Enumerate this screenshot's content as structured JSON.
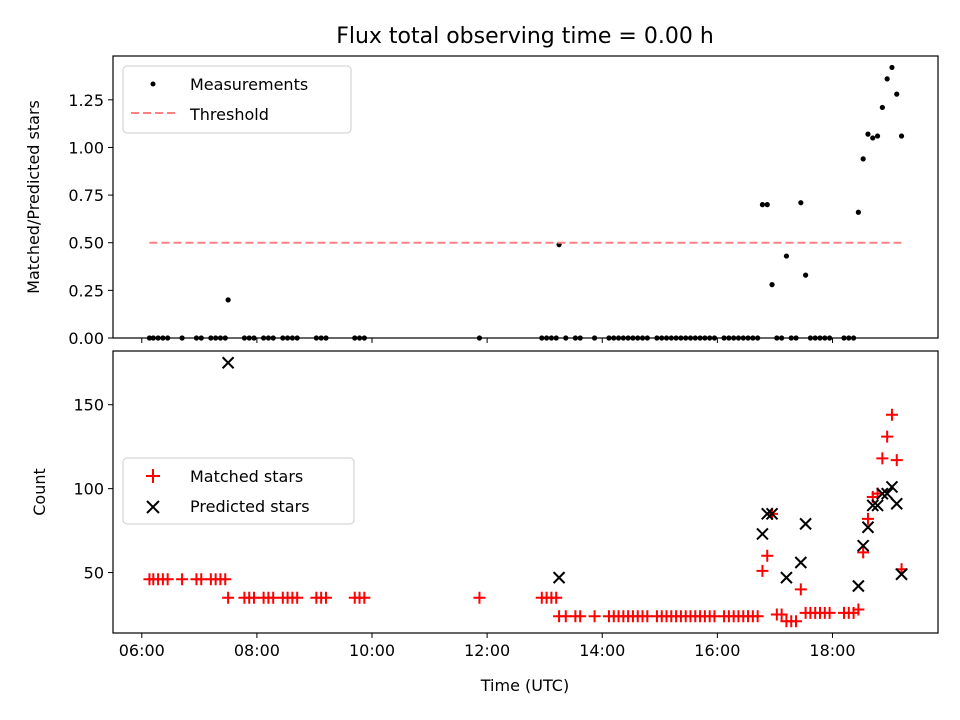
{
  "chart_data": [
    {
      "type": "scatter",
      "title": "Flux total observing time = 0.00 h",
      "ylabel": "Matched/Predicted stars",
      "xlabel": "",
      "xlim": [
        "05:30",
        "19:50"
      ],
      "ylim": [
        0,
        1.48
      ],
      "yticks": [
        "0.00",
        "0.25",
        "0.50",
        "0.75",
        "1.00",
        "1.25"
      ],
      "grid": false,
      "legend": {
        "placement": "top-left",
        "entries": [
          "Measurements",
          "Threshold"
        ]
      },
      "series": [
        {
          "name": "Measurements",
          "color": "#000000",
          "marker": "dot",
          "points": [
            [
              "06:08",
              0
            ],
            [
              "06:12",
              0
            ],
            [
              "06:17",
              0
            ],
            [
              "06:22",
              0
            ],
            [
              "06:27",
              0
            ],
            [
              "06:42",
              0
            ],
            [
              "06:57",
              0
            ],
            [
              "07:02",
              0
            ],
            [
              "07:12",
              0
            ],
            [
              "07:17",
              0
            ],
            [
              "07:22",
              0
            ],
            [
              "07:27",
              0
            ],
            [
              "07:30",
              0.2
            ],
            [
              "07:47",
              0
            ],
            [
              "07:52",
              0
            ],
            [
              "07:57",
              0
            ],
            [
              "08:07",
              0
            ],
            [
              "08:12",
              0
            ],
            [
              "08:17",
              0
            ],
            [
              "08:27",
              0
            ],
            [
              "08:32",
              0
            ],
            [
              "08:37",
              0
            ],
            [
              "08:42",
              0
            ],
            [
              "09:02",
              0
            ],
            [
              "09:07",
              0
            ],
            [
              "09:12",
              0
            ],
            [
              "09:42",
              0
            ],
            [
              "09:47",
              0
            ],
            [
              "09:52",
              0
            ],
            [
              "11:52",
              0
            ],
            [
              "12:57",
              0
            ],
            [
              "13:02",
              0
            ],
            [
              "13:07",
              0
            ],
            [
              "13:12",
              0
            ],
            [
              "13:15",
              0.49
            ],
            [
              "13:22",
              0
            ],
            [
              "13:32",
              0
            ],
            [
              "13:37",
              0
            ],
            [
              "13:52",
              0
            ],
            [
              "14:07",
              0
            ],
            [
              "14:12",
              0
            ],
            [
              "14:17",
              0
            ],
            [
              "14:22",
              0
            ],
            [
              "14:27",
              0
            ],
            [
              "14:32",
              0
            ],
            [
              "14:37",
              0
            ],
            [
              "14:42",
              0
            ],
            [
              "14:47",
              0
            ],
            [
              "14:57",
              0
            ],
            [
              "15:02",
              0
            ],
            [
              "15:07",
              0
            ],
            [
              "15:12",
              0
            ],
            [
              "15:17",
              0
            ],
            [
              "15:22",
              0
            ],
            [
              "15:27",
              0
            ],
            [
              "15:32",
              0
            ],
            [
              "15:37",
              0
            ],
            [
              "15:42",
              0
            ],
            [
              "15:47",
              0
            ],
            [
              "15:52",
              0
            ],
            [
              "15:57",
              0
            ],
            [
              "16:07",
              0
            ],
            [
              "16:12",
              0
            ],
            [
              "16:17",
              0
            ],
            [
              "16:22",
              0
            ],
            [
              "16:27",
              0
            ],
            [
              "16:32",
              0
            ],
            [
              "16:37",
              0
            ],
            [
              "16:42",
              0
            ],
            [
              "16:47",
              0.7
            ],
            [
              "16:52",
              0.7
            ],
            [
              "16:57",
              0.28
            ],
            [
              "17:02",
              0
            ],
            [
              "17:07",
              0
            ],
            [
              "17:12",
              0.43
            ],
            [
              "17:17",
              0
            ],
            [
              "17:22",
              0
            ],
            [
              "17:27",
              0.71
            ],
            [
              "17:32",
              0.33
            ],
            [
              "17:37",
              0
            ],
            [
              "17:42",
              0
            ],
            [
              "17:47",
              0
            ],
            [
              "17:52",
              0
            ],
            [
              "17:57",
              0
            ],
            [
              "18:12",
              0
            ],
            [
              "18:17",
              0
            ],
            [
              "18:22",
              0
            ],
            [
              "18:27",
              0.66
            ],
            [
              "18:32",
              0.94
            ],
            [
              "18:37",
              1.07
            ],
            [
              "18:42",
              1.05
            ],
            [
              "18:47",
              1.06
            ],
            [
              "18:52",
              1.21
            ],
            [
              "18:57",
              1.36
            ],
            [
              "19:02",
              1.42
            ],
            [
              "19:07",
              1.28
            ],
            [
              "19:12",
              1.06
            ]
          ]
        },
        {
          "name": "Threshold",
          "color": "#ff8080",
          "style": "dashed",
          "points": [
            [
              "06:08",
              0.5
            ],
            [
              "19:12",
              0.5
            ]
          ]
        }
      ]
    },
    {
      "type": "scatter",
      "title": "",
      "ylabel": "Count",
      "xlabel": "Time (UTC)",
      "xlim": [
        "05:30",
        "19:50"
      ],
      "ylim": [
        14,
        182
      ],
      "yticks": [
        "50",
        "100",
        "150"
      ],
      "xticks": [
        "06:00",
        "08:00",
        "10:00",
        "12:00",
        "14:00",
        "16:00",
        "18:00"
      ],
      "grid": false,
      "legend": {
        "placement": "center-left",
        "entries": [
          "Matched stars",
          "Predicted stars"
        ]
      },
      "series": [
        {
          "name": "Matched stars",
          "color": "#ff0000",
          "marker": "plus",
          "points": [
            [
              "06:08",
              46
            ],
            [
              "06:12",
              46
            ],
            [
              "06:17",
              46
            ],
            [
              "06:22",
              46
            ],
            [
              "06:27",
              46
            ],
            [
              "06:42",
              46
            ],
            [
              "06:57",
              46
            ],
            [
              "07:02",
              46
            ],
            [
              "07:12",
              46
            ],
            [
              "07:17",
              46
            ],
            [
              "07:22",
              46
            ],
            [
              "07:27",
              46
            ],
            [
              "07:30",
              35
            ],
            [
              "07:47",
              35
            ],
            [
              "07:52",
              35
            ],
            [
              "07:57",
              35
            ],
            [
              "08:07",
              35
            ],
            [
              "08:12",
              35
            ],
            [
              "08:17",
              35
            ],
            [
              "08:27",
              35
            ],
            [
              "08:32",
              35
            ],
            [
              "08:37",
              35
            ],
            [
              "08:42",
              35
            ],
            [
              "09:02",
              35
            ],
            [
              "09:07",
              35
            ],
            [
              "09:12",
              35
            ],
            [
              "09:42",
              35
            ],
            [
              "09:47",
              35
            ],
            [
              "09:52",
              35
            ],
            [
              "11:52",
              35
            ],
            [
              "12:57",
              35
            ],
            [
              "13:02",
              35
            ],
            [
              "13:07",
              35
            ],
            [
              "13:12",
              35
            ],
            [
              "13:15",
              24
            ],
            [
              "13:22",
              24
            ],
            [
              "13:32",
              24
            ],
            [
              "13:37",
              24
            ],
            [
              "13:52",
              24
            ],
            [
              "14:07",
              24
            ],
            [
              "14:12",
              24
            ],
            [
              "14:17",
              24
            ],
            [
              "14:22",
              24
            ],
            [
              "14:27",
              24
            ],
            [
              "14:32",
              24
            ],
            [
              "14:37",
              24
            ],
            [
              "14:42",
              24
            ],
            [
              "14:47",
              24
            ],
            [
              "14:57",
              24
            ],
            [
              "15:02",
              24
            ],
            [
              "15:07",
              24
            ],
            [
              "15:12",
              24
            ],
            [
              "15:17",
              24
            ],
            [
              "15:22",
              24
            ],
            [
              "15:27",
              24
            ],
            [
              "15:32",
              24
            ],
            [
              "15:37",
              24
            ],
            [
              "15:42",
              24
            ],
            [
              "15:47",
              24
            ],
            [
              "15:52",
              24
            ],
            [
              "15:57",
              24
            ],
            [
              "16:07",
              24
            ],
            [
              "16:12",
              24
            ],
            [
              "16:17",
              24
            ],
            [
              "16:22",
              24
            ],
            [
              "16:27",
              24
            ],
            [
              "16:32",
              24
            ],
            [
              "16:37",
              24
            ],
            [
              "16:42",
              24
            ],
            [
              "16:47",
              51
            ],
            [
              "16:52",
              60
            ],
            [
              "16:57",
              85
            ],
            [
              "17:02",
              25
            ],
            [
              "17:07",
              25
            ],
            [
              "17:12",
              21
            ],
            [
              "17:17",
              21
            ],
            [
              "17:22",
              21
            ],
            [
              "17:27",
              40
            ],
            [
              "17:32",
              26
            ],
            [
              "17:37",
              26
            ],
            [
              "17:42",
              26
            ],
            [
              "17:47",
              26
            ],
            [
              "17:52",
              26
            ],
            [
              "17:57",
              26
            ],
            [
              "18:12",
              26
            ],
            [
              "18:17",
              26
            ],
            [
              "18:22",
              26
            ],
            [
              "18:27",
              28
            ],
            [
              "18:32",
              62
            ],
            [
              "18:37",
              82
            ],
            [
              "18:42",
              95
            ],
            [
              "18:47",
              97
            ],
            [
              "18:52",
              118
            ],
            [
              "18:57",
              131
            ],
            [
              "19:02",
              144
            ],
            [
              "19:07",
              117
            ],
            [
              "19:12",
              52
            ]
          ]
        },
        {
          "name": "Predicted stars",
          "color": "#000000",
          "marker": "x",
          "points": [
            [
              "07:30",
              175
            ],
            [
              "13:15",
              47
            ],
            [
              "16:47",
              73
            ],
            [
              "16:52",
              85
            ],
            [
              "16:57",
              85
            ],
            [
              "17:12",
              47
            ],
            [
              "17:27",
              56
            ],
            [
              "17:32",
              79
            ],
            [
              "18:27",
              42
            ],
            [
              "18:32",
              66
            ],
            [
              "18:37",
              77
            ],
            [
              "18:42",
              90
            ],
            [
              "18:47",
              90
            ],
            [
              "18:52",
              97
            ],
            [
              "18:57",
              97
            ],
            [
              "19:02",
              101
            ],
            [
              "19:07",
              91
            ],
            [
              "19:12",
              49
            ]
          ]
        }
      ]
    }
  ]
}
